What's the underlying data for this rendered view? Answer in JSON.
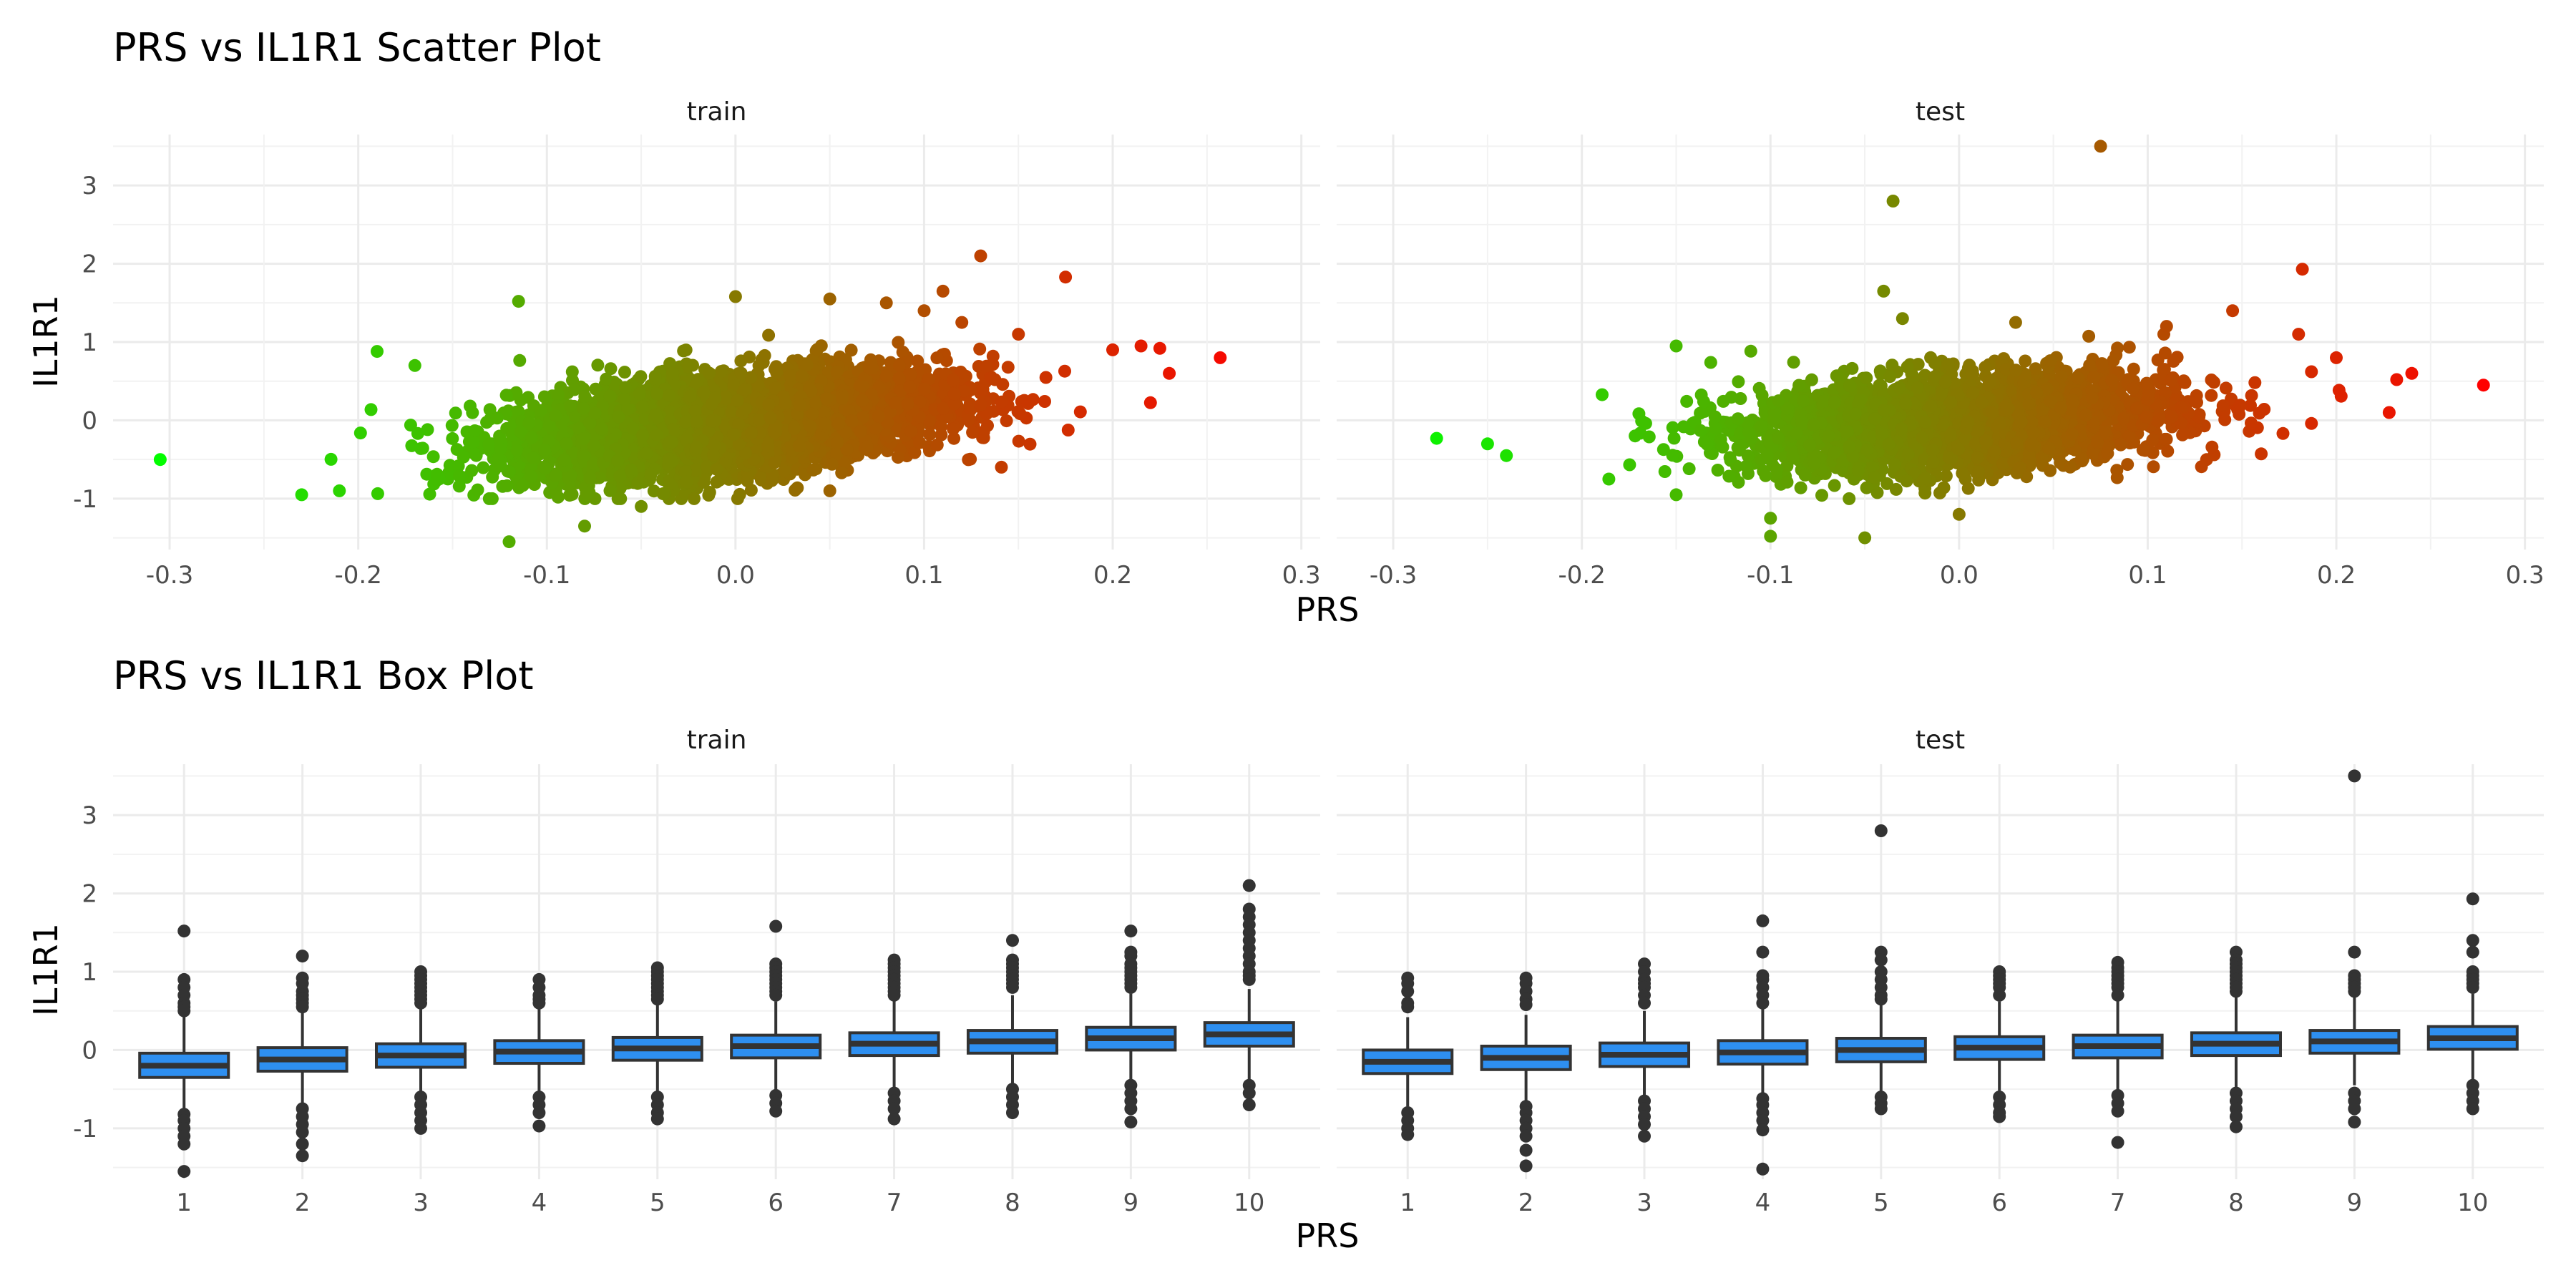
{
  "colors": {
    "scatter_low": "#00ff00",
    "scatter_high": "#ff0000",
    "box_fill": "#2e8ff0",
    "box_line": "#333333",
    "outlier": "#333333"
  },
  "chart_data": [
    {
      "type": "scatter",
      "title": "PRS vs IL1R1 Scatter Plot",
      "xlabel": "PRS",
      "ylabel": "IL1R1",
      "xlim": [
        -0.33,
        0.31
      ],
      "ylim": [
        -1.65,
        3.65
      ],
      "x_ticks": [
        -0.3,
        -0.2,
        -0.1,
        0.0,
        0.1,
        0.2,
        0.3
      ],
      "x_tick_labels": [
        "-0.3",
        "-0.2",
        "-0.1",
        "0.0",
        "0.1",
        "0.2",
        "0.3"
      ],
      "y_ticks": [
        -1,
        0,
        1,
        2,
        3
      ],
      "y_tick_labels": [
        "-1",
        "0",
        "1",
        "2",
        "3"
      ],
      "color_scale": "green-to-red by PRS",
      "legend": "none",
      "grid": true,
      "panels": [
        {
          "name": "train",
          "trend": {
            "slope": 2.4,
            "intercept": -0.03
          },
          "cloud": {
            "x_min": -0.25,
            "x_max": 0.22,
            "x_sd": 0.075,
            "y_sd": 0.3,
            "n": 4500
          },
          "points": [
            {
              "x": -0.305,
              "y": -0.5
            },
            {
              "x": -0.19,
              "y": 0.88
            },
            {
              "x": -0.115,
              "y": 1.52
            },
            {
              "x": -0.12,
              "y": -1.55
            },
            {
              "x": -0.08,
              "y": -1.35
            },
            {
              "x": -0.23,
              "y": -0.95
            },
            {
              "x": 0.0,
              "y": 1.58
            },
            {
              "x": 0.05,
              "y": 1.55
            },
            {
              "x": 0.08,
              "y": 1.5
            },
            {
              "x": 0.1,
              "y": 1.4
            },
            {
              "x": 0.11,
              "y": 1.65
            },
            {
              "x": 0.13,
              "y": 2.1
            },
            {
              "x": 0.175,
              "y": 1.83
            },
            {
              "x": 0.15,
              "y": 1.1
            },
            {
              "x": 0.2,
              "y": 0.9
            },
            {
              "x": 0.215,
              "y": 0.95
            },
            {
              "x": 0.225,
              "y": 0.92
            },
            {
              "x": 0.257,
              "y": 0.8
            },
            {
              "x": 0.23,
              "y": 0.6
            },
            {
              "x": 0.05,
              "y": -0.9
            },
            {
              "x": -0.05,
              "y": -1.1
            },
            {
              "x": -0.21,
              "y": -0.9
            },
            {
              "x": -0.17,
              "y": 0.7
            },
            {
              "x": 0.12,
              "y": 1.25
            }
          ]
        },
        {
          "name": "test",
          "trend": {
            "slope": 1.5,
            "intercept": -0.02
          },
          "cloud": {
            "x_min": -0.21,
            "x_max": 0.22,
            "x_sd": 0.075,
            "y_sd": 0.3,
            "n": 3000
          },
          "points": [
            {
              "x": -0.277,
              "y": -0.23
            },
            {
              "x": -0.25,
              "y": -0.3
            },
            {
              "x": -0.24,
              "y": -0.45
            },
            {
              "x": 0.075,
              "y": 3.5
            },
            {
              "x": -0.035,
              "y": 2.8
            },
            {
              "x": -0.04,
              "y": 1.65
            },
            {
              "x": 0.182,
              "y": 1.93
            },
            {
              "x": 0.145,
              "y": 1.4
            },
            {
              "x": -0.05,
              "y": -1.5
            },
            {
              "x": -0.1,
              "y": -1.48
            },
            {
              "x": -0.1,
              "y": -1.25
            },
            {
              "x": 0.0,
              "y": -1.2
            },
            {
              "x": 0.278,
              "y": 0.45
            },
            {
              "x": 0.24,
              "y": 0.6
            },
            {
              "x": 0.232,
              "y": 0.52
            },
            {
              "x": 0.228,
              "y": 0.1
            },
            {
              "x": 0.2,
              "y": 0.8
            },
            {
              "x": 0.18,
              "y": 1.1
            },
            {
              "x": 0.11,
              "y": 1.2
            },
            {
              "x": -0.15,
              "y": 0.95
            },
            {
              "x": -0.15,
              "y": -0.95
            },
            {
              "x": -0.03,
              "y": 1.3
            },
            {
              "x": 0.03,
              "y": 1.25
            }
          ]
        }
      ]
    },
    {
      "type": "box",
      "title": "PRS vs IL1R1 Box Plot",
      "xlabel": "PRS",
      "ylabel": "IL1R1",
      "categories": [
        "1",
        "2",
        "3",
        "4",
        "5",
        "6",
        "7",
        "8",
        "9",
        "10"
      ],
      "ylim": [
        -1.65,
        3.65
      ],
      "y_ticks": [
        -1,
        0,
        1,
        2,
        3
      ],
      "y_tick_labels": [
        "-1",
        "0",
        "1",
        "2",
        "3"
      ],
      "legend": "none",
      "grid": true,
      "panels": [
        {
          "name": "train",
          "boxes": [
            {
              "q1": -0.35,
              "median": -0.2,
              "q3": -0.04,
              "whisker_low": -0.78,
              "whisker_high": 0.42,
              "outliers": [
                1.52,
                0.9,
                0.8,
                0.7,
                0.6,
                0.55,
                0.5,
                -0.82,
                -0.9,
                -1.0,
                -1.1,
                -1.2,
                -1.55
              ]
            },
            {
              "q1": -0.27,
              "median": -0.12,
              "q3": 0.03,
              "whisker_low": -0.7,
              "whisker_high": 0.48,
              "outliers": [
                1.2,
                0.92,
                0.85,
                0.75,
                0.7,
                0.65,
                0.6,
                0.55,
                -0.75,
                -0.85,
                -0.95,
                -1.05,
                -1.2,
                -1.35
              ]
            },
            {
              "q1": -0.22,
              "median": -0.07,
              "q3": 0.08,
              "whisker_low": -0.65,
              "whisker_high": 0.52,
              "outliers": [
                1.0,
                0.95,
                0.9,
                0.85,
                0.8,
                0.75,
                0.7,
                0.65,
                0.6,
                -0.6,
                -0.7,
                -0.8,
                -0.9,
                -1.0
              ]
            },
            {
              "q1": -0.17,
              "median": -0.02,
              "q3": 0.12,
              "whisker_low": -0.58,
              "whisker_high": 0.55,
              "outliers": [
                0.9,
                0.8,
                0.7,
                0.65,
                0.6,
                -0.6,
                -0.7,
                -0.8,
                -0.97
              ]
            },
            {
              "q1": -0.13,
              "median": 0.02,
              "q3": 0.16,
              "whisker_low": -0.55,
              "whisker_high": 0.6,
              "outliers": [
                1.05,
                1.0,
                0.95,
                0.9,
                0.85,
                0.8,
                0.75,
                0.7,
                0.65,
                -0.6,
                -0.7,
                -0.8,
                -0.88
              ]
            },
            {
              "q1": -0.1,
              "median": 0.05,
              "q3": 0.19,
              "whisker_low": -0.52,
              "whisker_high": 0.62,
              "outliers": [
                1.58,
                1.1,
                1.05,
                1.0,
                0.95,
                0.9,
                0.85,
                0.8,
                0.75,
                0.7,
                -0.58,
                -0.68,
                -0.78
              ]
            },
            {
              "q1": -0.07,
              "median": 0.08,
              "q3": 0.22,
              "whisker_low": -0.5,
              "whisker_high": 0.65,
              "outliers": [
                1.15,
                1.1,
                1.05,
                1.0,
                0.95,
                0.9,
                0.85,
                0.8,
                0.75,
                0.7,
                -0.55,
                -0.65,
                -0.75,
                -0.88
              ]
            },
            {
              "q1": -0.04,
              "median": 0.11,
              "q3": 0.25,
              "whisker_low": -0.45,
              "whisker_high": 0.7,
              "outliers": [
                1.4,
                1.15,
                1.1,
                1.05,
                1.0,
                0.95,
                0.9,
                0.85,
                0.8,
                -0.5,
                -0.6,
                -0.7,
                -0.8
              ]
            },
            {
              "q1": 0.0,
              "median": 0.15,
              "q3": 0.29,
              "whisker_low": -0.42,
              "whisker_high": 0.72,
              "outliers": [
                1.52,
                1.25,
                1.2,
                1.1,
                1.05,
                1.0,
                0.95,
                0.9,
                0.85,
                0.8,
                -0.45,
                -0.55,
                -0.65,
                -0.75,
                -0.92
              ]
            },
            {
              "q1": 0.05,
              "median": 0.2,
              "q3": 0.35,
              "whisker_low": -0.4,
              "whisker_high": 0.78,
              "outliers": [
                2.1,
                1.8,
                1.7,
                1.6,
                1.5,
                1.4,
                1.3,
                1.2,
                1.1,
                1.0,
                0.95,
                0.9,
                -0.45,
                -0.55,
                -0.7
              ]
            }
          ]
        },
        {
          "name": "test",
          "boxes": [
            {
              "q1": -0.3,
              "median": -0.15,
              "q3": 0.0,
              "whisker_low": -0.72,
              "whisker_high": 0.42,
              "outliers": [
                0.92,
                0.85,
                0.75,
                0.6,
                0.55,
                -0.8,
                -0.9,
                -1.0,
                -1.08
              ]
            },
            {
              "q1": -0.25,
              "median": -0.1,
              "q3": 0.05,
              "whisker_low": -0.68,
              "whisker_high": 0.45,
              "outliers": [
                0.92,
                0.85,
                0.75,
                0.65,
                0.58,
                -0.72,
                -0.8,
                -0.9,
                -1.0,
                -1.1,
                -1.28,
                -1.48
              ]
            },
            {
              "q1": -0.21,
              "median": -0.06,
              "q3": 0.09,
              "whisker_low": -0.62,
              "whisker_high": 0.5,
              "outliers": [
                1.1,
                1.0,
                0.9,
                0.85,
                0.8,
                0.7,
                0.6,
                -0.65,
                -0.75,
                -0.85,
                -0.95,
                -1.1
              ]
            },
            {
              "q1": -0.18,
              "median": -0.03,
              "q3": 0.12,
              "whisker_low": -0.6,
              "whisker_high": 0.55,
              "outliers": [
                1.65,
                1.25,
                0.95,
                0.9,
                0.8,
                0.7,
                0.6,
                -0.62,
                -0.7,
                -0.8,
                -0.9,
                -1.02,
                -1.52
              ]
            },
            {
              "q1": -0.15,
              "median": 0.0,
              "q3": 0.15,
              "whisker_low": -0.55,
              "whisker_high": 0.58,
              "outliers": [
                2.8,
                1.25,
                1.15,
                1.0,
                0.9,
                0.8,
                0.7,
                0.65,
                -0.6,
                -0.68,
                -0.75
              ]
            },
            {
              "q1": -0.12,
              "median": 0.03,
              "q3": 0.17,
              "whisker_low": -0.52,
              "whisker_high": 0.62,
              "outliers": [
                1.0,
                0.95,
                0.9,
                0.85,
                0.8,
                0.7,
                -0.6,
                -0.7,
                -0.8,
                -0.85
              ]
            },
            {
              "q1": -0.1,
              "median": 0.05,
              "q3": 0.19,
              "whisker_low": -0.5,
              "whisker_high": 0.64,
              "outliers": [
                1.12,
                1.05,
                1.0,
                0.95,
                0.9,
                0.85,
                0.8,
                0.7,
                -0.58,
                -0.68,
                -0.78,
                -1.18
              ]
            },
            {
              "q1": -0.07,
              "median": 0.08,
              "q3": 0.22,
              "whisker_low": -0.48,
              "whisker_high": 0.68,
              "outliers": [
                1.25,
                1.15,
                1.1,
                1.05,
                1.0,
                0.95,
                0.9,
                0.85,
                0.8,
                0.75,
                -0.55,
                -0.65,
                -0.75,
                -0.85,
                -0.98
              ]
            },
            {
              "q1": -0.04,
              "median": 0.11,
              "q3": 0.25,
              "whisker_low": -0.45,
              "whisker_high": 0.7,
              "outliers": [
                3.5,
                1.25,
                0.95,
                0.9,
                0.85,
                0.8,
                0.75,
                -0.55,
                -0.65,
                -0.75,
                -0.92
              ]
            },
            {
              "q1": 0.01,
              "median": 0.15,
              "q3": 0.3,
              "whisker_low": -0.4,
              "whisker_high": 0.72,
              "outliers": [
                1.93,
                1.4,
                1.25,
                1.0,
                0.95,
                0.9,
                0.85,
                0.8,
                -0.45,
                -0.55,
                -0.65,
                -0.75
              ]
            }
          ]
        }
      ]
    }
  ]
}
